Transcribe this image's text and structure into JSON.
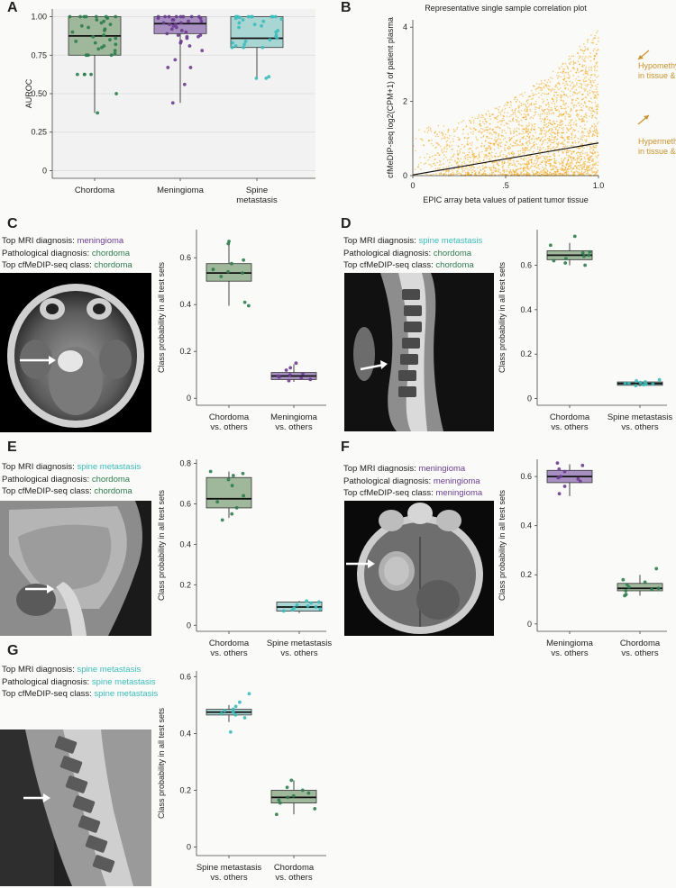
{
  "colors": {
    "chordoma": "#2e7d4f",
    "chordoma_fill": "#9fb79a",
    "meningioma": "#6a3d8f",
    "meningioma_fill": "#a88fc2",
    "spine": "#3cbcbc",
    "spine_fill": "#a9d6d3",
    "orange": "#f2a20c",
    "orange_text": "#c9932e"
  },
  "panel_letters": {
    "A": "A",
    "B": "B",
    "C": "C",
    "D": "D",
    "E": "E",
    "F": "F",
    "G": "G"
  },
  "panels": {
    "C": {
      "lines": [
        {
          "label": "Top MRI diagnosis: ",
          "value": "meningioma",
          "color": "meningioma"
        },
        {
          "label": "Pathological diagnosis: ",
          "value": "chordoma",
          "color": "chordoma"
        },
        {
          "label": "Top cfMeDIP-seq class: ",
          "value": "chordoma",
          "color": "chordoma"
        }
      ]
    },
    "D": {
      "lines": [
        {
          "label": "Top MRI diagnosis: ",
          "value": "spine metastasis",
          "color": "spine"
        },
        {
          "label": "Pathological diagnosis: ",
          "value": "chordoma",
          "color": "chordoma"
        },
        {
          "label": "Top cfMeDIP-seq class: ",
          "value": "chordoma",
          "color": "chordoma"
        }
      ]
    },
    "E": {
      "lines": [
        {
          "label": "Top MRI diagnosis: ",
          "value": "spine metastasis",
          "color": "spine"
        },
        {
          "label": "Pathological diagnosis: ",
          "value": "chordoma",
          "color": "chordoma"
        },
        {
          "label": "Top cfMeDIP-seq class: ",
          "value": "chordoma",
          "color": "chordoma"
        }
      ]
    },
    "F": {
      "lines": [
        {
          "label": "Top MRI diagnosis: ",
          "value": "meningioma",
          "color": "meningioma"
        },
        {
          "label": "Pathological diagnosis: ",
          "value": "meningioma",
          "color": "meningioma"
        },
        {
          "label": "Top cfMeDIP-seq class: ",
          "value": "meningioma",
          "color": "meningioma"
        }
      ]
    },
    "G": {
      "lines": [
        {
          "label": "Top MRI diagnosis: ",
          "value": "spine metastasis",
          "color": "spine"
        },
        {
          "label": "Pathological diagnosis: ",
          "value": "spine metastasis",
          "color": "spine"
        },
        {
          "label": "Top cfMeDIP-seq class: ",
          "value": "spine metastasis",
          "color": "spine"
        }
      ]
    }
  },
  "chart_data": [
    {
      "id": "A",
      "type": "box",
      "ylabel": "AUROC",
      "ylim": [
        -0.05,
        1.05
      ],
      "yticks": [
        "0",
        "0.25",
        "0.50",
        "0.75",
        "1.00"
      ],
      "ytick_values": [
        0,
        0.25,
        0.5,
        0.75,
        1.0
      ],
      "grid": true,
      "categories": [
        {
          "label": [
            "Chordoma"
          ],
          "color": "chordoma",
          "box": {
            "q1": 0.75,
            "median": 0.875,
            "q3": 1.0,
            "lo": 0.375,
            "hi": 1.0
          },
          "points": [
            1.0,
            1.0,
            1.0,
            1.0,
            1.0,
            1.0,
            1.0,
            0.995,
            0.99,
            0.98,
            0.97,
            0.96,
            0.95,
            0.94,
            0.93,
            0.92,
            0.91,
            0.9,
            0.88,
            0.87,
            0.86,
            0.85,
            0.84,
            0.83,
            0.82,
            0.81,
            0.8,
            0.79,
            0.78,
            0.76,
            0.75,
            0.75,
            0.75,
            0.75,
            0.625,
            0.625,
            0.625,
            0.625,
            0.5,
            0.375
          ]
        },
        {
          "label": [
            "Meningioma"
          ],
          "color": "meningioma",
          "box": {
            "q1": 0.89,
            "median": 0.955,
            "q3": 1.0,
            "lo": 0.44,
            "hi": 1.0
          },
          "points": [
            1.0,
            1.0,
            1.0,
            1.0,
            1.0,
            1.0,
            1.0,
            1.0,
            0.99,
            0.99,
            0.98,
            0.98,
            0.97,
            0.97,
            0.96,
            0.96,
            0.95,
            0.95,
            0.94,
            0.93,
            0.92,
            0.91,
            0.9,
            0.89,
            0.88,
            0.88,
            0.87,
            0.87,
            0.86,
            0.84,
            0.83,
            0.81,
            0.78,
            0.72,
            0.67,
            0.67,
            0.56,
            0.44
          ]
        },
        {
          "label": [
            "Spine",
            "metastasis"
          ],
          "color": "spine",
          "box": {
            "q1": 0.8,
            "median": 0.86,
            "q3": 1.0,
            "lo": 0.6,
            "hi": 1.0
          },
          "points": [
            1.0,
            1.0,
            1.0,
            1.0,
            1.0,
            1.0,
            1.0,
            1.0,
            0.995,
            0.99,
            0.985,
            0.98,
            0.97,
            0.96,
            0.95,
            0.94,
            0.93,
            0.91,
            0.9,
            0.88,
            0.87,
            0.86,
            0.85,
            0.84,
            0.83,
            0.82,
            0.81,
            0.8,
            0.8,
            0.8,
            0.61,
            0.6,
            0.6
          ]
        }
      ]
    },
    {
      "id": "B",
      "type": "scatter",
      "title": "Representative single sample correlation plot",
      "xlabel": "EPIC array beta values of patient tumor tissue",
      "ylabel": "cfMeDIP-seq log2(CPM+1) of patient plasma",
      "xlim": [
        0,
        1
      ],
      "ylim": [
        0,
        4.2
      ],
      "xticks": [
        "0",
        ".5",
        "1.0"
      ],
      "xtick_values": [
        0,
        0.5,
        1.0
      ],
      "yticks": [
        "0",
        "2",
        "4"
      ],
      "ytick_values": [
        0,
        2,
        4
      ],
      "point_color": "orange",
      "density": {
        "low_beta_y_max": 1.3,
        "high_beta_y_max": 4.0,
        "n_points": 2600
      },
      "trend_line": {
        "x": [
          0,
          1
        ],
        "y": [
          0.02,
          0.88
        ]
      },
      "annotations": [
        {
          "lines": [
            "Hypomethylated",
            "in tissue & plasma"
          ],
          "color": "orange_text"
        },
        {
          "lines": [
            "Hypermethylated",
            "in tissue & plasma"
          ],
          "color": "orange_text"
        }
      ]
    },
    {
      "id": "C",
      "type": "box",
      "ylabel": "Class probability in all test sets",
      "ylim": [
        -0.03,
        0.72
      ],
      "yticks": [
        "0",
        "0.2",
        "0.4",
        "0.6"
      ],
      "ytick_values": [
        0,
        0.2,
        0.4,
        0.6
      ],
      "categories": [
        {
          "label": [
            "Chordoma",
            "vs. others"
          ],
          "color": "chordoma",
          "box": {
            "q1": 0.5,
            "median": 0.535,
            "q3": 0.575,
            "lo": 0.395,
            "hi": 0.665
          },
          "points": [
            0.67,
            0.66,
            0.59,
            0.575,
            0.55,
            0.54,
            0.535,
            0.52,
            0.41,
            0.395
          ]
        },
        {
          "label": [
            "Meningioma",
            "vs. others"
          ],
          "color": "meningioma",
          "box": {
            "q1": 0.08,
            "median": 0.095,
            "q3": 0.11,
            "lo": 0.07,
            "hi": 0.145
          },
          "points": [
            0.15,
            0.13,
            0.12,
            0.105,
            0.1,
            0.095,
            0.09,
            0.085,
            0.08,
            0.075
          ]
        }
      ]
    },
    {
      "id": "D",
      "type": "box",
      "ylabel": "Class probability in all test sets",
      "ylim": [
        -0.03,
        0.76
      ],
      "yticks": [
        "0",
        "0.2",
        "0.4",
        "0.6"
      ],
      "ytick_values": [
        0,
        0.2,
        0.4,
        0.6
      ],
      "categories": [
        {
          "label": [
            "Chordoma",
            "vs. others"
          ],
          "color": "chordoma",
          "box": {
            "q1": 0.625,
            "median": 0.645,
            "q3": 0.665,
            "lo": 0.6,
            "hi": 0.7
          },
          "points": [
            0.73,
            0.69,
            0.66,
            0.655,
            0.645,
            0.64,
            0.63,
            0.62,
            0.61,
            0.6
          ]
        },
        {
          "label": [
            "Spine metastasis",
            "vs. others"
          ],
          "color": "spine",
          "box": {
            "q1": 0.06,
            "median": 0.068,
            "q3": 0.075,
            "lo": 0.055,
            "hi": 0.08
          },
          "points": [
            0.085,
            0.08,
            0.075,
            0.072,
            0.07,
            0.068,
            0.066,
            0.064,
            0.062,
            0.058
          ]
        }
      ]
    },
    {
      "id": "E",
      "type": "box",
      "ylabel": "Class probability in all test sets",
      "ylim": [
        -0.03,
        0.82
      ],
      "yticks": [
        "0",
        "0.2",
        "0.4",
        "0.6",
        "0.8"
      ],
      "ytick_values": [
        0,
        0.2,
        0.4,
        0.6,
        0.8
      ],
      "categories": [
        {
          "label": [
            "Chordoma",
            "vs. others"
          ],
          "color": "chordoma",
          "box": {
            "q1": 0.58,
            "median": 0.625,
            "q3": 0.73,
            "lo": 0.53,
            "hi": 0.76
          },
          "points": [
            0.76,
            0.75,
            0.74,
            0.72,
            0.69,
            0.64,
            0.61,
            0.58,
            0.55,
            0.52
          ]
        },
        {
          "label": [
            "Spine metastasis",
            "vs. others"
          ],
          "color": "spine",
          "box": {
            "q1": 0.07,
            "median": 0.09,
            "q3": 0.115,
            "lo": 0.06,
            "hi": 0.12
          },
          "points": [
            0.12,
            0.115,
            0.11,
            0.1,
            0.095,
            0.09,
            0.085,
            0.08,
            0.075,
            0.07
          ]
        }
      ]
    },
    {
      "id": "F",
      "type": "box",
      "ylabel": "Class probability in all test sets",
      "ylim": [
        -0.03,
        0.67
      ],
      "yticks": [
        "0",
        "0.2",
        "0.4",
        "0.6"
      ],
      "ytick_values": [
        0,
        0.2,
        0.4,
        0.6
      ],
      "categories": [
        {
          "label": [
            "Meningioma",
            "vs. others"
          ],
          "color": "meningioma",
          "box": {
            "q1": 0.575,
            "median": 0.6,
            "q3": 0.625,
            "lo": 0.52,
            "hi": 0.65
          },
          "points": [
            0.655,
            0.645,
            0.63,
            0.62,
            0.6,
            0.595,
            0.59,
            0.58,
            0.56,
            0.53
          ]
        },
        {
          "label": [
            "Chordoma",
            "vs. others"
          ],
          "color": "chordoma",
          "box": {
            "q1": 0.135,
            "median": 0.145,
            "q3": 0.165,
            "lo": 0.115,
            "hi": 0.2
          },
          "points": [
            0.225,
            0.18,
            0.17,
            0.16,
            0.15,
            0.145,
            0.14,
            0.135,
            0.12,
            0.115
          ]
        }
      ]
    },
    {
      "id": "G",
      "type": "box",
      "ylabel": "Class probability in all test sets",
      "ylim": [
        -0.03,
        0.62
      ],
      "yticks": [
        "0",
        "0.2",
        "0.4",
        "0.6"
      ],
      "ytick_values": [
        0,
        0.2,
        0.4,
        0.6
      ],
      "categories": [
        {
          "label": [
            "Spine metastasis",
            "vs. others"
          ],
          "color": "spine",
          "box": {
            "q1": 0.465,
            "median": 0.475,
            "q3": 0.485,
            "lo": 0.44,
            "hi": 0.5
          },
          "points": [
            0.54,
            0.51,
            0.495,
            0.485,
            0.48,
            0.475,
            0.47,
            0.465,
            0.455,
            0.405
          ]
        },
        {
          "label": [
            "Chordoma",
            "vs. others"
          ],
          "color": "chordoma",
          "box": {
            "q1": 0.155,
            "median": 0.175,
            "q3": 0.2,
            "lo": 0.115,
            "hi": 0.235
          },
          "points": [
            0.235,
            0.21,
            0.2,
            0.19,
            0.18,
            0.175,
            0.165,
            0.155,
            0.135,
            0.115
          ]
        }
      ]
    }
  ]
}
